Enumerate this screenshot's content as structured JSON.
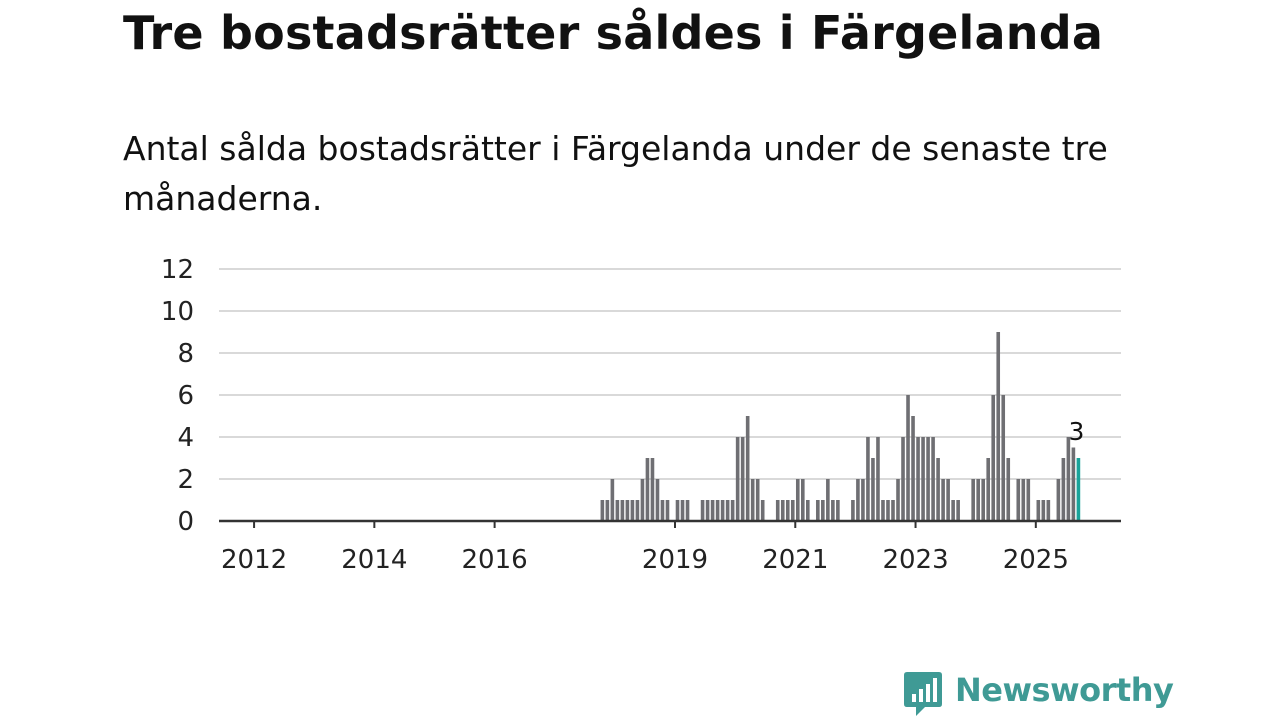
{
  "title": "Tre bostadsrätter såldes i Färgelanda",
  "subtitle": "Antal sålda bostadsrätter i Färgelanda under de senaste tre månaderna.",
  "brand": {
    "name": "Newsworthy",
    "color": "#3f9a95"
  },
  "chart_data": {
    "type": "bar",
    "x_axis": {
      "start": "2011-06",
      "end": "2026-06",
      "tick_labels": [
        "2012",
        "2014",
        "2016",
        "2019",
        "2021",
        "2023",
        "2025"
      ],
      "tick_positions": [
        "2012-01",
        "2014-01",
        "2016-01",
        "2019-01",
        "2021-01",
        "2023-01",
        "2025-01"
      ]
    },
    "y_axis": {
      "ylim": [
        0,
        12
      ],
      "ticks": [
        0,
        2,
        4,
        6,
        8,
        10,
        12
      ]
    },
    "grid": true,
    "bar_color": "#6f6f73",
    "highlight_color": "#1aa39a",
    "series": [
      {
        "points": [
          {
            "x": "2017-10",
            "y": 1
          },
          {
            "x": "2017-11",
            "y": 1
          },
          {
            "x": "2017-12",
            "y": 2
          },
          {
            "x": "2018-01",
            "y": 1
          },
          {
            "x": "2018-02",
            "y": 1
          },
          {
            "x": "2018-03",
            "y": 1
          },
          {
            "x": "2018-04",
            "y": 1
          },
          {
            "x": "2018-05",
            "y": 1
          },
          {
            "x": "2018-06",
            "y": 2
          },
          {
            "x": "2018-07",
            "y": 3
          },
          {
            "x": "2018-08",
            "y": 3
          },
          {
            "x": "2018-09",
            "y": 2
          },
          {
            "x": "2018-10",
            "y": 1
          },
          {
            "x": "2018-11",
            "y": 1
          },
          {
            "x": "2019-01",
            "y": 1
          },
          {
            "x": "2019-02",
            "y": 1
          },
          {
            "x": "2019-03",
            "y": 1
          },
          {
            "x": "2019-06",
            "y": 1
          },
          {
            "x": "2019-07",
            "y": 1
          },
          {
            "x": "2019-08",
            "y": 1
          },
          {
            "x": "2019-09",
            "y": 1
          },
          {
            "x": "2019-10",
            "y": 1
          },
          {
            "x": "2019-11",
            "y": 1
          },
          {
            "x": "2019-12",
            "y": 1
          },
          {
            "x": "2020-01",
            "y": 4
          },
          {
            "x": "2020-02",
            "y": 4
          },
          {
            "x": "2020-03",
            "y": 5
          },
          {
            "x": "2020-04",
            "y": 2
          },
          {
            "x": "2020-05",
            "y": 2
          },
          {
            "x": "2020-06",
            "y": 1
          },
          {
            "x": "2020-09",
            "y": 1
          },
          {
            "x": "2020-10",
            "y": 1
          },
          {
            "x": "2020-11",
            "y": 1
          },
          {
            "x": "2020-12",
            "y": 1
          },
          {
            "x": "2021-01",
            "y": 2
          },
          {
            "x": "2021-02",
            "y": 2
          },
          {
            "x": "2021-03",
            "y": 1
          },
          {
            "x": "2021-05",
            "y": 1
          },
          {
            "x": "2021-06",
            "y": 1
          },
          {
            "x": "2021-07",
            "y": 2
          },
          {
            "x": "2021-08",
            "y": 1
          },
          {
            "x": "2021-09",
            "y": 1
          },
          {
            "x": "2021-12",
            "y": 1
          },
          {
            "x": "2022-01",
            "y": 2
          },
          {
            "x": "2022-02",
            "y": 2
          },
          {
            "x": "2022-03",
            "y": 4
          },
          {
            "x": "2022-04",
            "y": 3
          },
          {
            "x": "2022-05",
            "y": 4
          },
          {
            "x": "2022-06",
            "y": 1
          },
          {
            "x": "2022-07",
            "y": 1
          },
          {
            "x": "2022-08",
            "y": 1
          },
          {
            "x": "2022-09",
            "y": 2
          },
          {
            "x": "2022-10",
            "y": 4
          },
          {
            "x": "2022-11",
            "y": 6
          },
          {
            "x": "2022-12",
            "y": 5
          },
          {
            "x": "2023-01",
            "y": 4
          },
          {
            "x": "2023-02",
            "y": 4
          },
          {
            "x": "2023-03",
            "y": 4
          },
          {
            "x": "2023-04",
            "y": 4
          },
          {
            "x": "2023-05",
            "y": 3
          },
          {
            "x": "2023-06",
            "y": 2
          },
          {
            "x": "2023-07",
            "y": 2
          },
          {
            "x": "2023-08",
            "y": 1
          },
          {
            "x": "2023-09",
            "y": 1
          },
          {
            "x": "2023-12",
            "y": 2
          },
          {
            "x": "2024-01",
            "y": 2
          },
          {
            "x": "2024-02",
            "y": 2
          },
          {
            "x": "2024-03",
            "y": 3
          },
          {
            "x": "2024-04",
            "y": 6
          },
          {
            "x": "2024-05",
            "y": 9
          },
          {
            "x": "2024-06",
            "y": 6
          },
          {
            "x": "2024-07",
            "y": 3
          },
          {
            "x": "2024-09",
            "y": 2
          },
          {
            "x": "2024-10",
            "y": 2
          },
          {
            "x": "2024-11",
            "y": 2
          },
          {
            "x": "2025-01",
            "y": 1
          },
          {
            "x": "2025-02",
            "y": 1
          },
          {
            "x": "2025-03",
            "y": 1
          },
          {
            "x": "2025-05",
            "y": 2
          },
          {
            "x": "2025-06",
            "y": 3
          },
          {
            "x": "2025-07",
            "y": 4
          },
          {
            "x": "2025-08",
            "y": 3.5
          },
          {
            "x": "2025-09",
            "y": 3,
            "highlight": true
          }
        ]
      }
    ],
    "annotations": [
      {
        "x": "2025-09",
        "y": 3,
        "text": "3"
      }
    ]
  }
}
